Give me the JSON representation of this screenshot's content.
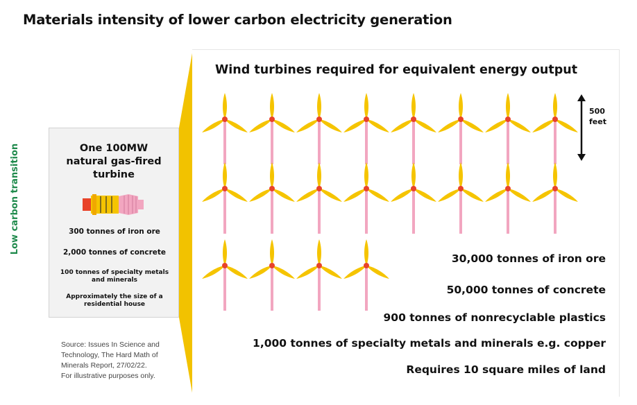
{
  "title": "Materials intensity of lower carbon electricity generation",
  "side_label": "Low carbon transition",
  "gas": {
    "title": "One 100MW\nnatural gas-fired\nturbine",
    "stats": [
      "300 tonnes of iron ore",
      "2,000 tonnes of concrete",
      "100 tonnes of specialty metals\nand minerals",
      "Approximately the size of a\nresidential house"
    ]
  },
  "source": "Source: Issues In Science and\nTechnology, The Hard Math of\nMinerals Report, 27/02/22.\nFor illustrative purposes only.",
  "wind": {
    "title": "Wind turbines required for equivalent energy output",
    "scale_label": "500\nfeet",
    "turbine_rows": [
      8,
      8,
      4
    ],
    "stats": [
      "30,000 tonnes of iron ore",
      "50,000 tonnes of concrete",
      "900 tonnes of nonrecyclable plastics",
      "1,000 tonnes of specialty metals and minerals e.g. copper",
      "Requires 10 square miles of land"
    ]
  },
  "colors": {
    "accent_green": "#1f8a4c",
    "connector_yellow": "#f2c200",
    "blade_yellow": "#f5c400",
    "tower_pink": "#f2a6c0",
    "hub_red": "#e8432a"
  }
}
